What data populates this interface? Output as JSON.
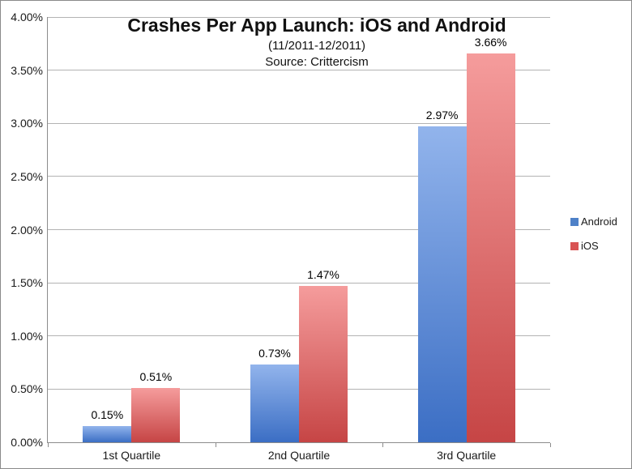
{
  "page": {
    "background": "#ffffff",
    "border_color": "#8a8a8a"
  },
  "header": {
    "title": "Crashes Per App Launch: iOS and Android",
    "subtitle": "(11/2011-12/2011)",
    "source": "Source: Crittercism"
  },
  "chart_data": {
    "type": "bar",
    "title": "Crashes Per App Launch: iOS and Android",
    "subtitle": "(11/2011-12/2011)",
    "source": "Source: Crittercism",
    "categories": [
      "1st Quartile",
      "2nd Quartile",
      "3rd Quartile"
    ],
    "series": [
      {
        "name": "Android",
        "values": [
          0.15,
          0.73,
          2.97
        ],
        "labels": [
          "0.15%",
          "0.73%",
          "2.97%"
        ],
        "bar_gradient": [
          "#92B4EC",
          "#3B6EC4"
        ],
        "legend_color": "#4E81C8"
      },
      {
        "name": "iOS",
        "values": [
          0.51,
          1.47,
          3.66
        ],
        "labels": [
          "0.51%",
          "1.47%",
          "3.66%"
        ],
        "bar_gradient": [
          "#F59C9C",
          "#C64545"
        ],
        "legend_color": "#D95454"
      }
    ],
    "ylim": [
      0,
      4
    ],
    "ytick_step": 0.5,
    "ytick_labels_top_to_bottom": [
      "4.00%",
      "3.50%",
      "3.00%",
      "2.50%",
      "2.00%",
      "1.50%",
      "1.00%",
      "0.50%",
      "0.00%"
    ],
    "grid": true,
    "legend_position": "right"
  },
  "colors": {
    "gridline": "#b3b3b3",
    "axis": "#8c8c8c",
    "text": "#1a1a1a"
  }
}
